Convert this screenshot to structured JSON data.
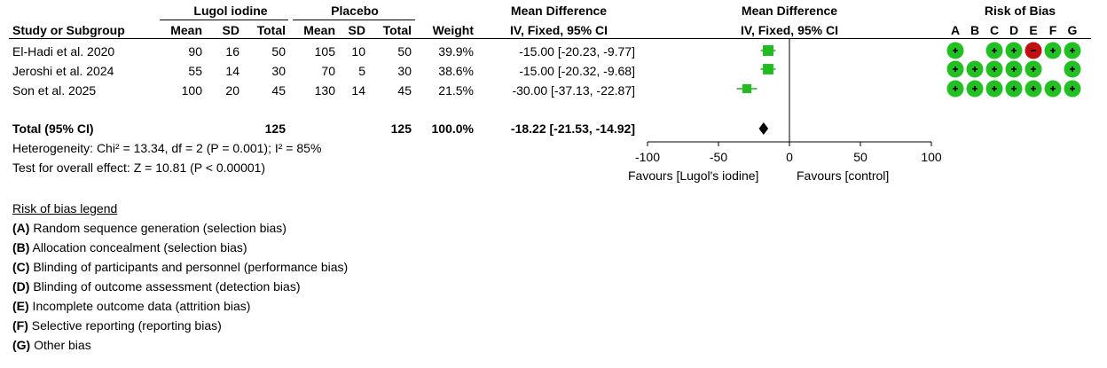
{
  "header": {
    "group_experimental": "Lugol iodine",
    "group_control": "Placebo",
    "effect_title": "Mean Difference",
    "effect_method": "IV, Fixed, 95% CI",
    "plot_title": "Mean Difference",
    "plot_method": "IV, Fixed, 95% CI",
    "rob_title": "Risk of Bias",
    "cols": {
      "study": "Study or Subgroup",
      "mean1": "Mean",
      "sd1": "SD",
      "total1": "Total",
      "mean2": "Mean",
      "sd2": "SD",
      "total2": "Total",
      "weight": "Weight"
    },
    "rob_letters": [
      "A",
      "B",
      "C",
      "D",
      "E",
      "F",
      "G"
    ]
  },
  "studies": [
    {
      "name": "El-Hadi et al. 2020",
      "mean1": "90",
      "sd1": "16",
      "total1": "50",
      "mean2": "105",
      "sd2": "10",
      "total2": "50",
      "weight": "39.9%",
      "ci": "-15.00 [-20.23, -9.77]",
      "rob": [
        "low",
        "none",
        "low",
        "low",
        "high",
        "low",
        "low"
      ]
    },
    {
      "name": "Jeroshi et al. 2024",
      "mean1": "55",
      "sd1": "14",
      "total1": "30",
      "mean2": "70",
      "sd2": "5",
      "total2": "30",
      "weight": "38.6%",
      "ci": "-15.00 [-20.32, -9.68]",
      "rob": [
        "low",
        "low",
        "low",
        "low",
        "low",
        "none",
        "low"
      ]
    },
    {
      "name": "Son et al. 2025",
      "mean1": "100",
      "sd1": "20",
      "total1": "45",
      "mean2": "130",
      "sd2": "14",
      "total2": "45",
      "weight": "21.5%",
      "ci": "-30.00 [-37.13, -22.87]",
      "rob": [
        "low",
        "low",
        "low",
        "low",
        "low",
        "low",
        "low"
      ]
    }
  ],
  "total": {
    "label": "Total (95% CI)",
    "total1": "125",
    "total2": "125",
    "weight": "100.0%",
    "ci": "-18.22 [-21.53, -14.92]"
  },
  "heterogeneity": "Heterogeneity: Chi² = 13.34, df = 2 (P = 0.001); I² = 85%",
  "overall_effect": "Test for overall effect: Z = 10.81 (P < 0.00001)",
  "axis": {
    "favours_left": "Favours [Lugol's iodine]",
    "favours_right": "Favours [control]"
  },
  "legend": {
    "title": "Risk of bias legend",
    "items": [
      {
        "key": "(A)",
        "text": " Random sequence generation (selection bias)"
      },
      {
        "key": "(B)",
        "text": " Allocation concealment (selection bias)"
      },
      {
        "key": "(C)",
        "text": " Blinding of participants and personnel (performance bias)"
      },
      {
        "key": "(D)",
        "text": " Blinding of outcome assessment (detection bias)"
      },
      {
        "key": "(E)",
        "text": " Incomplete outcome data (attrition bias)"
      },
      {
        "key": "(F)",
        "text": " Selective reporting (reporting bias)"
      },
      {
        "key": "(G)",
        "text": " Other bias"
      }
    ]
  },
  "colors": {
    "low": "#22c022",
    "high": "#c01010",
    "marker": "#22bb22"
  },
  "chart_data": {
    "type": "forest",
    "xlim": [
      -100,
      100
    ],
    "ticks": [
      -100,
      -50,
      0,
      50,
      100
    ],
    "tick_labels": [
      "-100",
      "-50",
      "0",
      "50",
      "100"
    ],
    "series": [
      {
        "study": "El-Hadi et al. 2020",
        "md": -15.0,
        "lo": -20.23,
        "hi": -9.77,
        "weight": 39.9
      },
      {
        "study": "Jeroshi et al. 2024",
        "md": -15.0,
        "lo": -20.32,
        "hi": -9.68,
        "weight": 38.6
      },
      {
        "study": "Son et al. 2025",
        "md": -30.0,
        "lo": -37.13,
        "hi": -22.87,
        "weight": 21.5
      }
    ],
    "pooled": {
      "md": -18.22,
      "lo": -21.53,
      "hi": -14.92
    }
  }
}
